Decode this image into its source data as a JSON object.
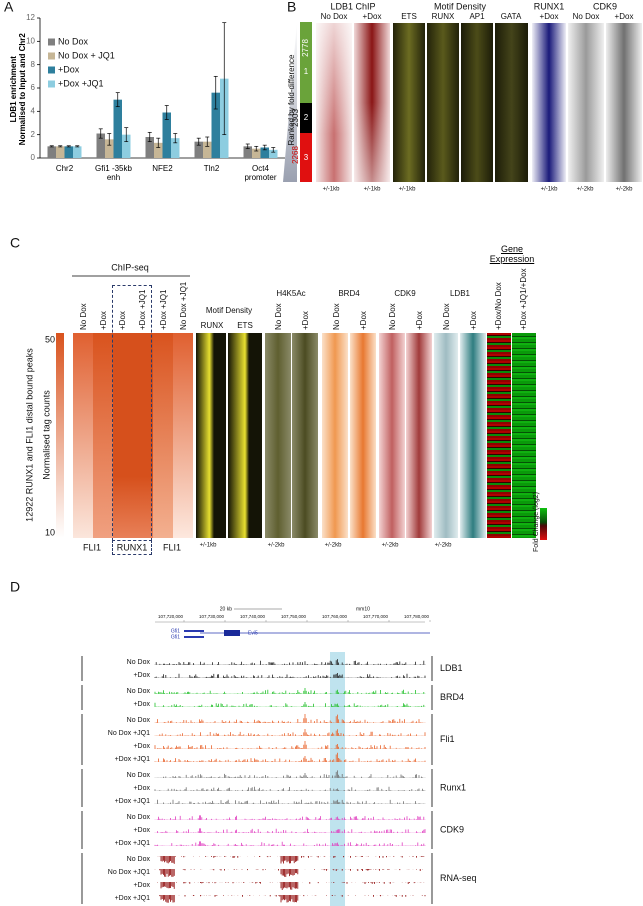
{
  "chart_data": {
    "type": "bar",
    "panel_label": "A",
    "y_label": "LDB1 enrichment\nNormalised to Input and Chr2",
    "categories": [
      "Chr2",
      "Gfi1 -35kb\nenh",
      "NFE2",
      "Tln2",
      "Oct4\npromoter"
    ],
    "series": [
      {
        "name": "No Dox",
        "color": "#7f7f7f",
        "values": [
          1,
          2.1,
          1.8,
          1.4,
          1.0
        ],
        "errors": [
          0.05,
          0.4,
          0.4,
          0.3,
          0.2
        ]
      },
      {
        "name": "No Dox + JQ1",
        "color": "#c6b696",
        "values": [
          1,
          1.6,
          1.3,
          1.4,
          0.8
        ],
        "errors": [
          0.05,
          0.5,
          0.4,
          0.4,
          0.2
        ]
      },
      {
        "name": "+Dox",
        "color": "#2e7f9d",
        "values": [
          1,
          5.0,
          3.9,
          5.6,
          0.9
        ],
        "errors": [
          0.05,
          0.6,
          0.6,
          1.4,
          0.2
        ]
      },
      {
        "name": "+Dox +JQ1",
        "color": "#8dcde0",
        "values": [
          1,
          2.0,
          1.7,
          6.8,
          0.7
        ],
        "errors": [
          0.05,
          0.6,
          0.4,
          4.8,
          0.2
        ]
      }
    ],
    "ylim": [
      0,
      12
    ],
    "yticks": [
      0,
      2,
      4,
      6,
      8,
      10,
      12
    ],
    "legend": "upper left"
  },
  "panel_b": {
    "label": "B",
    "y_label": "Ranked by fold-difference",
    "clusters": [
      {
        "size": 2778,
        "id": 1
      },
      {
        "size": 2303,
        "id": 2
      },
      {
        "size": 2268,
        "id": 3
      }
    ],
    "groups": [
      {
        "title": "LDB1 ChIP",
        "columns": [
          "No Dox",
          "+Dox"
        ],
        "windows": [
          "+/-1kb",
          "+/-1kb"
        ]
      },
      {
        "title": "Motif Density",
        "columns": [
          "ETS",
          "RUNX",
          "AP1",
          "GATA"
        ],
        "windows": [
          "+/-1kb"
        ]
      },
      {
        "title": "RUNX1",
        "columns": [
          "+Dox"
        ],
        "windows": [
          "+/-1kb"
        ]
      },
      {
        "title": "CDK9",
        "columns": [
          "No Dox",
          "+Dox"
        ],
        "windows": [
          "+/-2kb",
          "+/-2kb"
        ]
      }
    ]
  },
  "panel_c": {
    "label": "C",
    "chipseq": {
      "title": "ChIP-seq",
      "columns": [
        "No Dox",
        "+Dox",
        "+Dox",
        "+Dox +JQ1",
        "+Dox +JQ1",
        "No Dox +JQ1"
      ],
      "factors": [
        "FLI1",
        "RUNX1",
        "FLI1"
      ]
    },
    "motif": {
      "title": "Motif Density",
      "columns": [
        "RUNX",
        "ETS"
      ],
      "window": "+/-1kb"
    },
    "tracks": [
      {
        "title": "H4K5Ac",
        "columns": [
          "No Dox",
          "+Dox"
        ],
        "window": "+/-2kb"
      },
      {
        "title": "BRD4",
        "columns": [
          "No Dox",
          "+Dox"
        ],
        "window": "+/-2kb"
      },
      {
        "title": "CDK9",
        "columns": [
          "No Dox",
          "+Dox"
        ],
        "window": "+/-2kb"
      },
      {
        "title": "LDB1",
        "columns": [
          "No Dox",
          "+Dox"
        ],
        "window": "+/-2kb"
      }
    ],
    "expression": {
      "title": "Gene\nExpression",
      "columns": [
        "+Dox/No Dox",
        "+Dox +JQ1/+Dox"
      ],
      "scale_label": "Fold Change (log2)"
    },
    "y_label": "12922 RUNX1 and FLI1 distal bound peaks",
    "scale": {
      "label": "Normalised tag counts",
      "max": 50,
      "min": 10
    }
  },
  "panel_d": {
    "label": "D",
    "scale": "20 kb",
    "assembly": "mm10",
    "coordinates": [
      "107,720,000",
      "107,730,000",
      "107,740,000",
      "107,750,000",
      "107,760,000",
      "107,770,000",
      "107,780,000"
    ],
    "genes": [
      "Gfi1",
      "Gfi1",
      "Evi5"
    ],
    "groups": [
      {
        "name": "LDB1",
        "tracks": [
          "No Dox",
          "+Dox"
        ]
      },
      {
        "name": "BRD4",
        "tracks": [
          "No Dox",
          "+Dox"
        ]
      },
      {
        "name": "Fli1",
        "tracks": [
          "No Dox",
          "No Dox +JQ1",
          "+Dox",
          "+Dox +JQ1"
        ]
      },
      {
        "name": "Runx1",
        "tracks": [
          "No Dox",
          "+Dox",
          "+Dox +JQ1"
        ]
      },
      {
        "name": "CDK9",
        "tracks": [
          "No Dox",
          "+Dox",
          "+Dox +JQ1"
        ]
      },
      {
        "name": "RNA-seq",
        "tracks": [
          "No Dox",
          "No Dox +JQ1",
          "+Dox",
          "+Dox +JQ1"
        ]
      }
    ]
  }
}
